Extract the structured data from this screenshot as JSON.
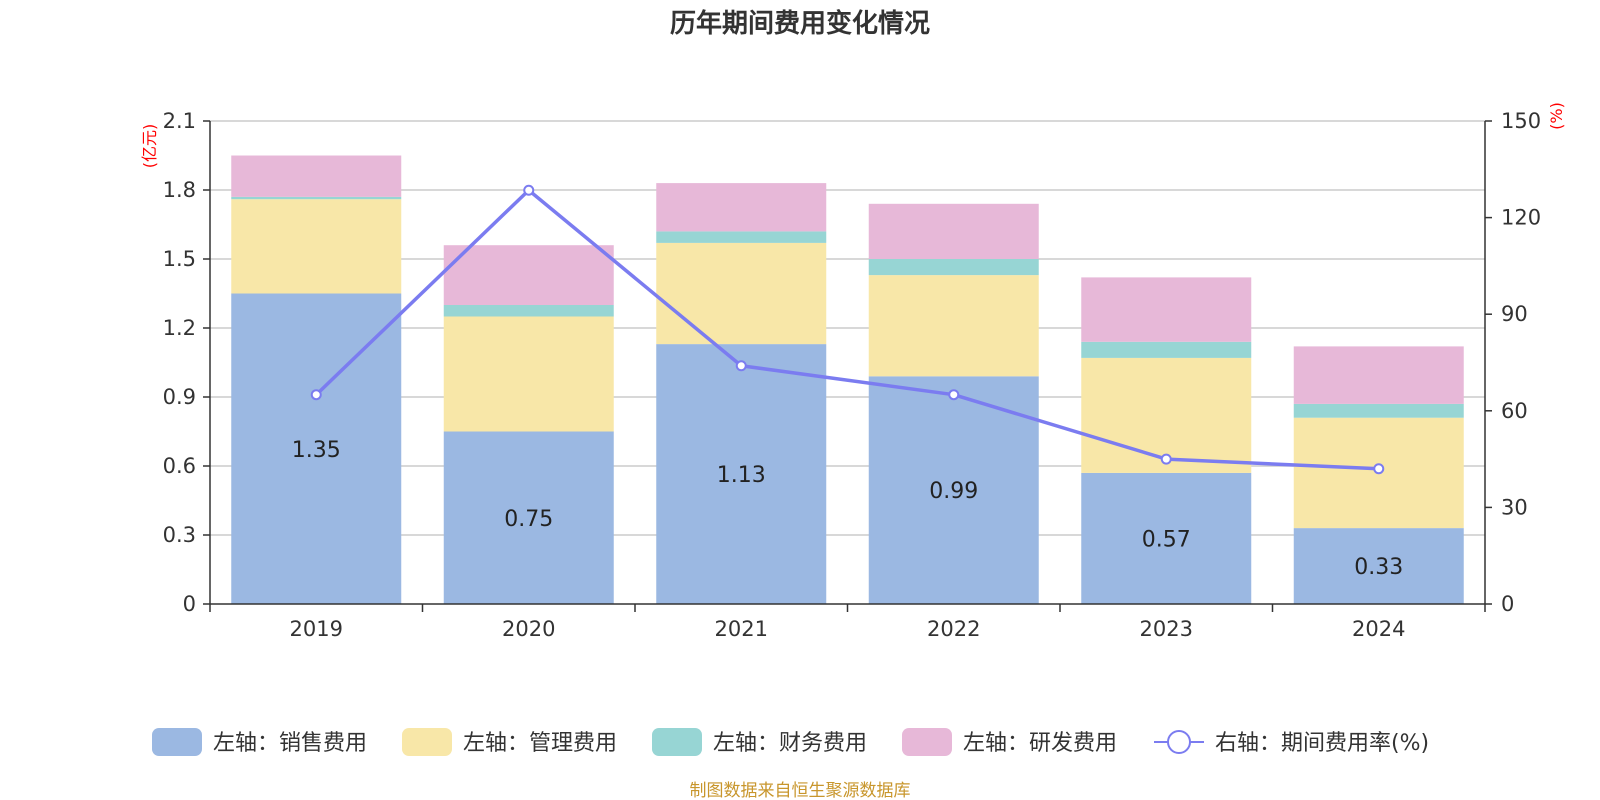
{
  "chart_data": {
    "type": "bar",
    "stacked": true,
    "title": "历年期间费用变化情况",
    "categories": [
      "2019",
      "2020",
      "2021",
      "2022",
      "2023",
      "2024"
    ],
    "series": [
      {
        "name": "左轴：销售费用",
        "axis": "left",
        "color": "#9bb8e2",
        "values": [
          1.35,
          0.75,
          1.13,
          0.99,
          0.57,
          0.33
        ],
        "show_labels": true
      },
      {
        "name": "左轴：管理费用",
        "axis": "left",
        "color": "#f8e7a8",
        "values": [
          0.41,
          0.5,
          0.44,
          0.44,
          0.5,
          0.48
        ]
      },
      {
        "name": "左轴：财务费用",
        "axis": "left",
        "color": "#97d5d4",
        "values": [
          0.01,
          0.05,
          0.05,
          0.07,
          0.07,
          0.06
        ]
      },
      {
        "name": "左轴：研发费用",
        "axis": "left",
        "color": "#e7b8d8",
        "values": [
          0.18,
          0.26,
          0.21,
          0.24,
          0.28,
          0.25
        ]
      }
    ],
    "line_series": {
      "name": "右轴：期间费用率(%)",
      "axis": "right",
      "type": "line",
      "color": "#7b7cf0",
      "values": [
        65,
        128.5,
        74,
        65,
        45,
        42
      ]
    },
    "left_axis": {
      "unit": "(亿元)",
      "ylim": [
        0,
        2.1
      ],
      "ticks": [
        "0",
        "0.3",
        "0.6",
        "0.9",
        "1.2",
        "1.5",
        "1.8",
        "2.1"
      ],
      "values": [
        0,
        0.3,
        0.6,
        0.9,
        1.2,
        1.5,
        1.8,
        2.1
      ]
    },
    "right_axis": {
      "unit": "(%)",
      "ylim": [
        0,
        150
      ],
      "ticks": [
        "0",
        "30",
        "60",
        "90",
        "120",
        "150"
      ],
      "values": [
        0,
        30,
        60,
        90,
        120,
        150
      ]
    },
    "grid": true,
    "legend_position": "bottom",
    "source": "制图数据来自恒生聚源数据库",
    "colors": {
      "unit_label": "#ff0000",
      "source": "#c8962c",
      "axis": "#333333",
      "grid": "#cccccc"
    }
  }
}
